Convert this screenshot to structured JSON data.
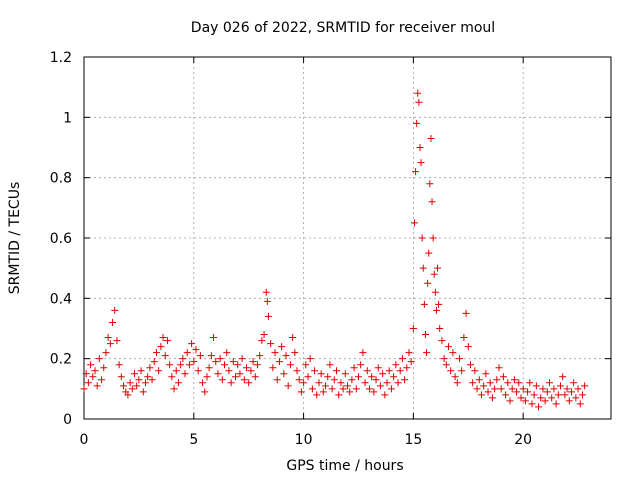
{
  "chart_data": {
    "type": "scatter",
    "title": "Day 026 of 2022, SRMTID for receiver moul",
    "xlabel": "GPS time / hours",
    "ylabel": "SRMTID / TECUs",
    "xlim": [
      0,
      24
    ],
    "ylim": [
      0,
      1.2
    ],
    "x_ticks": [
      0,
      5,
      10,
      15,
      20
    ],
    "x_tick_labels": [
      "0",
      "5",
      "10",
      "15",
      "20"
    ],
    "y_ticks": [
      0,
      0.2,
      0.4,
      0.6,
      0.8,
      1,
      1.2
    ],
    "y_tick_labels": [
      "0",
      "0.2",
      "0.4",
      "0.6",
      "0.8",
      "1",
      "1.2"
    ],
    "grid": true,
    "marker": "+",
    "color": "#e00000",
    "series": [
      {
        "name": "moul",
        "points": [
          [
            0.0,
            0.1
          ],
          [
            0.1,
            0.15
          ],
          [
            0.2,
            0.12
          ],
          [
            0.3,
            0.18
          ],
          [
            0.4,
            0.14
          ],
          [
            0.5,
            0.16
          ],
          [
            0.6,
            0.11
          ],
          [
            0.7,
            0.2
          ],
          [
            0.8,
            0.13
          ],
          [
            0.9,
            0.17
          ],
          [
            1.0,
            0.22
          ],
          [
            1.1,
            0.27
          ],
          [
            1.2,
            0.25
          ],
          [
            1.3,
            0.32
          ],
          [
            1.4,
            0.36
          ],
          [
            1.5,
            0.26
          ],
          [
            1.6,
            0.18
          ],
          [
            1.7,
            0.14
          ],
          [
            1.8,
            0.11
          ],
          [
            1.9,
            0.09
          ],
          [
            2.0,
            0.08
          ],
          [
            2.1,
            0.12
          ],
          [
            2.2,
            0.1
          ],
          [
            2.3,
            0.15
          ],
          [
            2.4,
            0.11
          ],
          [
            2.5,
            0.13
          ],
          [
            2.6,
            0.16
          ],
          [
            2.7,
            0.09
          ],
          [
            2.8,
            0.12
          ],
          [
            2.9,
            0.14
          ],
          [
            3.0,
            0.17
          ],
          [
            3.1,
            0.13
          ],
          [
            3.2,
            0.19
          ],
          [
            3.3,
            0.22
          ],
          [
            3.4,
            0.16
          ],
          [
            3.5,
            0.24
          ],
          [
            3.6,
            0.27
          ],
          [
            3.7,
            0.21
          ],
          [
            3.8,
            0.26
          ],
          [
            3.9,
            0.18
          ],
          [
            4.0,
            0.14
          ],
          [
            4.1,
            0.1
          ],
          [
            4.2,
            0.16
          ],
          [
            4.3,
            0.12
          ],
          [
            4.4,
            0.18
          ],
          [
            4.5,
            0.2
          ],
          [
            4.6,
            0.15
          ],
          [
            4.7,
            0.22
          ],
          [
            4.8,
            0.18
          ],
          [
            4.9,
            0.25
          ],
          [
            5.0,
            0.19
          ],
          [
            5.1,
            0.23
          ],
          [
            5.2,
            0.16
          ],
          [
            5.3,
            0.21
          ],
          [
            5.4,
            0.12
          ],
          [
            5.5,
            0.09
          ],
          [
            5.6,
            0.14
          ],
          [
            5.7,
            0.17
          ],
          [
            5.8,
            0.21
          ],
          [
            5.9,
            0.27
          ],
          [
            6.0,
            0.19
          ],
          [
            6.1,
            0.15
          ],
          [
            6.2,
            0.2
          ],
          [
            6.3,
            0.13
          ],
          [
            6.4,
            0.18
          ],
          [
            6.5,
            0.22
          ],
          [
            6.6,
            0.16
          ],
          [
            6.7,
            0.12
          ],
          [
            6.8,
            0.19
          ],
          [
            6.9,
            0.14
          ],
          [
            7.0,
            0.18
          ],
          [
            7.1,
            0.15
          ],
          [
            7.2,
            0.2
          ],
          [
            7.3,
            0.13
          ],
          [
            7.4,
            0.17
          ],
          [
            7.5,
            0.12
          ],
          [
            7.6,
            0.16
          ],
          [
            7.7,
            0.19
          ],
          [
            7.8,
            0.14
          ],
          [
            7.9,
            0.18
          ],
          [
            8.0,
            0.21
          ],
          [
            8.1,
            0.26
          ],
          [
            8.2,
            0.28
          ],
          [
            8.3,
            0.42
          ],
          [
            8.35,
            0.39
          ],
          [
            8.4,
            0.34
          ],
          [
            8.5,
            0.25
          ],
          [
            8.6,
            0.17
          ],
          [
            8.7,
            0.22
          ],
          [
            8.8,
            0.13
          ],
          [
            8.9,
            0.19
          ],
          [
            9.0,
            0.24
          ],
          [
            9.1,
            0.15
          ],
          [
            9.2,
            0.21
          ],
          [
            9.3,
            0.11
          ],
          [
            9.4,
            0.18
          ],
          [
            9.5,
            0.27
          ],
          [
            9.6,
            0.22
          ],
          [
            9.7,
            0.16
          ],
          [
            9.8,
            0.13
          ],
          [
            9.9,
            0.09
          ],
          [
            10.0,
            0.12
          ],
          [
            10.1,
            0.18
          ],
          [
            10.2,
            0.14
          ],
          [
            10.3,
            0.2
          ],
          [
            10.4,
            0.1
          ],
          [
            10.5,
            0.16
          ],
          [
            10.6,
            0.08
          ],
          [
            10.7,
            0.12
          ],
          [
            10.8,
            0.15
          ],
          [
            10.9,
            0.09
          ],
          [
            11.0,
            0.11
          ],
          [
            11.1,
            0.14
          ],
          [
            11.2,
            0.18
          ],
          [
            11.3,
            0.1
          ],
          [
            11.4,
            0.13
          ],
          [
            11.5,
            0.16
          ],
          [
            11.6,
            0.08
          ],
          [
            11.7,
            0.12
          ],
          [
            11.8,
            0.1
          ],
          [
            11.9,
            0.15
          ],
          [
            12.0,
            0.11
          ],
          [
            12.1,
            0.09
          ],
          [
            12.2,
            0.13
          ],
          [
            12.3,
            0.17
          ],
          [
            12.4,
            0.1
          ],
          [
            12.5,
            0.14
          ],
          [
            12.6,
            0.18
          ],
          [
            12.7,
            0.22
          ],
          [
            12.8,
            0.12
          ],
          [
            12.9,
            0.16
          ],
          [
            13.0,
            0.1
          ],
          [
            13.1,
            0.14
          ],
          [
            13.2,
            0.09
          ],
          [
            13.3,
            0.13
          ],
          [
            13.4,
            0.17
          ],
          [
            13.5,
            0.11
          ],
          [
            13.6,
            0.15
          ],
          [
            13.7,
            0.08
          ],
          [
            13.8,
            0.12
          ],
          [
            13.9,
            0.16
          ],
          [
            14.0,
            0.1
          ],
          [
            14.1,
            0.14
          ],
          [
            14.2,
            0.18
          ],
          [
            14.3,
            0.12
          ],
          [
            14.4,
            0.16
          ],
          [
            14.5,
            0.2
          ],
          [
            14.6,
            0.13
          ],
          [
            14.7,
            0.17
          ],
          [
            14.8,
            0.22
          ],
          [
            14.9,
            0.19
          ],
          [
            15.0,
            0.3
          ],
          [
            15.05,
            0.65
          ],
          [
            15.1,
            0.82
          ],
          [
            15.15,
            0.98
          ],
          [
            15.2,
            1.08
          ],
          [
            15.25,
            1.05
          ],
          [
            15.3,
            0.9
          ],
          [
            15.35,
            0.85
          ],
          [
            15.4,
            0.6
          ],
          [
            15.45,
            0.5
          ],
          [
            15.5,
            0.38
          ],
          [
            15.55,
            0.28
          ],
          [
            15.6,
            0.22
          ],
          [
            15.65,
            0.45
          ],
          [
            15.7,
            0.55
          ],
          [
            15.75,
            0.78
          ],
          [
            15.8,
            0.93
          ],
          [
            15.85,
            0.72
          ],
          [
            15.9,
            0.6
          ],
          [
            15.95,
            0.48
          ],
          [
            16.0,
            0.42
          ],
          [
            16.05,
            0.36
          ],
          [
            16.1,
            0.5
          ],
          [
            16.15,
            0.38
          ],
          [
            16.2,
            0.3
          ],
          [
            16.3,
            0.26
          ],
          [
            16.4,
            0.2
          ],
          [
            16.5,
            0.18
          ],
          [
            16.6,
            0.24
          ],
          [
            16.7,
            0.16
          ],
          [
            16.8,
            0.22
          ],
          [
            16.9,
            0.14
          ],
          [
            17.0,
            0.12
          ],
          [
            17.1,
            0.2
          ],
          [
            17.2,
            0.16
          ],
          [
            17.3,
            0.27
          ],
          [
            17.4,
            0.35
          ],
          [
            17.5,
            0.24
          ],
          [
            17.6,
            0.18
          ],
          [
            17.7,
            0.12
          ],
          [
            17.8,
            0.16
          ],
          [
            17.9,
            0.1
          ],
          [
            18.0,
            0.13
          ],
          [
            18.1,
            0.08
          ],
          [
            18.2,
            0.11
          ],
          [
            18.3,
            0.15
          ],
          [
            18.4,
            0.09
          ],
          [
            18.5,
            0.12
          ],
          [
            18.6,
            0.07
          ],
          [
            18.7,
            0.1
          ],
          [
            18.8,
            0.13
          ],
          [
            18.9,
            0.17
          ],
          [
            19.0,
            0.1
          ],
          [
            19.1,
            0.14
          ],
          [
            19.2,
            0.08
          ],
          [
            19.3,
            0.12
          ],
          [
            19.4,
            0.06
          ],
          [
            19.5,
            0.1
          ],
          [
            19.6,
            0.13
          ],
          [
            19.7,
            0.09
          ],
          [
            19.8,
            0.12
          ],
          [
            19.9,
            0.07
          ],
          [
            20.0,
            0.1
          ],
          [
            20.1,
            0.06
          ],
          [
            20.2,
            0.09
          ],
          [
            20.3,
            0.12
          ],
          [
            20.4,
            0.05
          ],
          [
            20.5,
            0.08
          ],
          [
            20.6,
            0.11
          ],
          [
            20.7,
            0.04
          ],
          [
            20.8,
            0.07
          ],
          [
            20.9,
            0.1
          ],
          [
            21.0,
            0.06
          ],
          [
            21.1,
            0.09
          ],
          [
            21.2,
            0.12
          ],
          [
            21.3,
            0.07
          ],
          [
            21.4,
            0.1
          ],
          [
            21.5,
            0.05
          ],
          [
            21.6,
            0.08
          ],
          [
            21.7,
            0.11
          ],
          [
            21.8,
            0.14
          ],
          [
            21.9,
            0.08
          ],
          [
            22.0,
            0.1
          ],
          [
            22.1,
            0.06
          ],
          [
            22.2,
            0.09
          ],
          [
            22.3,
            0.12
          ],
          [
            22.4,
            0.07
          ],
          [
            22.5,
            0.1
          ],
          [
            22.6,
            0.05
          ],
          [
            22.7,
            0.08
          ],
          [
            22.8,
            0.11
          ]
        ]
      }
    ]
  }
}
